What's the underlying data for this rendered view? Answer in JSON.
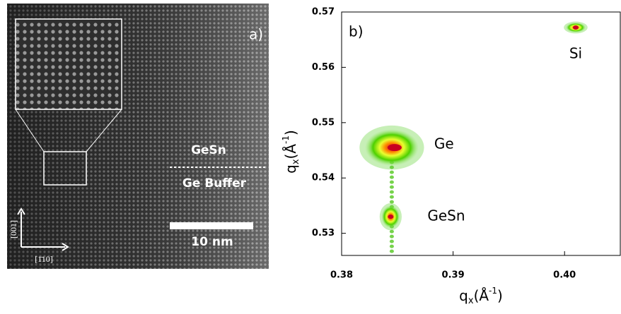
{
  "panel_a": {
    "label": "a)",
    "upper_layer": "GeSn",
    "lower_layer": "Ge Buffer",
    "scale_bar": "10 nm",
    "axis_vertical": "[001]",
    "axis_horizontal": "[1̄10]"
  },
  "chart_data": {
    "type": "scatter",
    "panel_label": "b)",
    "points": [
      {
        "label": "Si",
        "x": 0.401,
        "y": 0.5672
      },
      {
        "label": "Ge",
        "x": 0.3845,
        "y": 0.5455
      },
      {
        "label": "GeSn",
        "x": 0.3844,
        "y": 0.533
      }
    ],
    "x_label": {
      "base": "q",
      "sub": "x",
      "unit": "(Å",
      "sup": "-1",
      "end": ")"
    },
    "y_label": {
      "base": "q",
      "sub": "x",
      "unit": "(Å",
      "sup": "-1",
      "end": ")"
    },
    "xlim": [
      0.38,
      0.405
    ],
    "xticks": [
      0.38,
      0.39,
      {
        "value": 0.4,
        "label": "0.40"
      }
    ],
    "ylim": [
      0.526,
      0.57
    ],
    "yticks": [
      0.53,
      0.54,
      0.55,
      0.56,
      0.57
    ]
  }
}
